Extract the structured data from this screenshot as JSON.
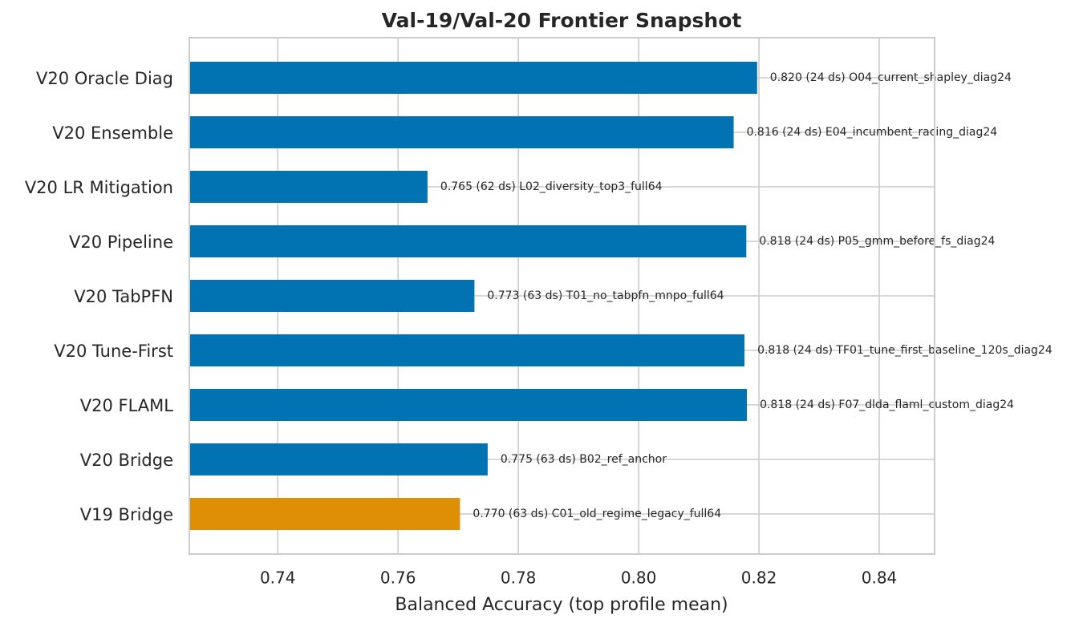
{
  "chart_data": {
    "type": "barh",
    "title": "Val-19/Val-20 Frontier Snapshot",
    "x_label": "Balanced Accuracy (top profile mean)",
    "categories": [
      "V20 Oracle Diag",
      "V20 Ensemble",
      "V20 LR Mitigation",
      "V20 Pipeline",
      "V20 TabPFN",
      "V20 Tune-First",
      "V20 FLAML",
      "V20 Bridge",
      "V19 Bridge"
    ],
    "values": [
      0.8197,
      0.8158,
      0.7649,
      0.8179,
      0.7727,
      0.8176,
      0.818,
      0.7749,
      0.7703
    ],
    "value_labels": [
      "0.820 (24 ds)  O04_current_shapley_diag24",
      "0.816 (24 ds)  E04_incumbent_racing_diag24",
      "0.765 (62 ds)  L02_diversity_top3_full64",
      "0.818 (24 ds)  P05_gmm_before_fs_diag24",
      "0.773 (63 ds)  T01_no_tabpfn_mnpo_full64",
      "0.818 (24 ds)  TF01_tune_first_baseline_120s_diag24",
      "0.818 (24 ds)  F07_dlda_flaml_custom_diag24",
      "0.775 (63 ds)  B02_ref_anchor",
      "0.770 (63 ds)  C01_old_regime_legacy_full64"
    ],
    "colors": [
      "#0173b2",
      "#0173b2",
      "#0173b2",
      "#0173b2",
      "#0173b2",
      "#0173b2",
      "#0173b2",
      "#0173b2",
      "#de8f05"
    ],
    "xlim": [
      0.7253,
      0.8492
    ],
    "xticks": [
      {
        "value": 0.74,
        "label": "0.74"
      },
      {
        "value": 0.76,
        "label": "0.76"
      },
      {
        "value": 0.78,
        "label": "0.78"
      },
      {
        "value": 0.8,
        "label": "0.80"
      },
      {
        "value": 0.82,
        "label": "0.82"
      },
      {
        "value": 0.84,
        "label": "0.84"
      }
    ],
    "grid": true
  }
}
